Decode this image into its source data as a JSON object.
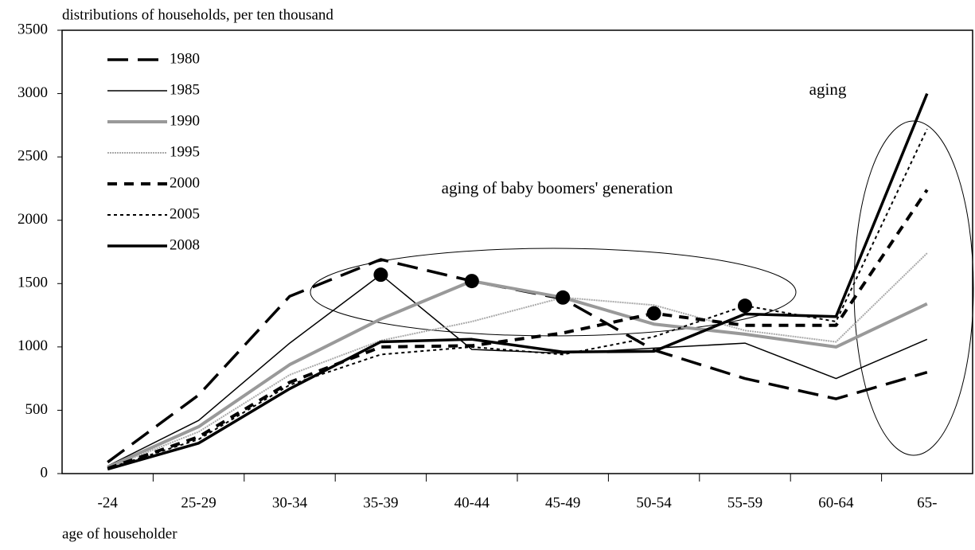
{
  "chart_data": {
    "type": "line",
    "y_label": "distributions of households, per ten thousand",
    "x_label": "age of householder",
    "categories": [
      "-24",
      "25-29",
      "30-34",
      "35-39",
      "40-44",
      "45-49",
      "50-54",
      "55-59",
      "60-64",
      "65-"
    ],
    "ylim": [
      0,
      3500
    ],
    "yticks": [
      0,
      500,
      1000,
      1500,
      2000,
      2500,
      3000,
      3500
    ],
    "annotations": [
      "aging of baby boomers' generation",
      "aging"
    ],
    "series": [
      {
        "name": "1980",
        "color": "#000000",
        "width": 3.5,
        "dash": "26 12",
        "values": [
          90,
          620,
          1400,
          1690,
          1520,
          1380,
          975,
          750,
          590,
          800
        ]
      },
      {
        "name": "1985",
        "color": "#000000",
        "width": 1.5,
        "dash": "none",
        "marked": 3,
        "values": [
          60,
          420,
          1030,
          1570,
          980,
          950,
          990,
          1030,
          750,
          1060
        ]
      },
      {
        "name": "1990",
        "color": "#999999",
        "width": 4,
        "dash": "none",
        "marked": 4,
        "values": [
          50,
          370,
          860,
          1220,
          1520,
          1390,
          1180,
          1100,
          1000,
          1340
        ]
      },
      {
        "name": "1995",
        "color": "#aaaaaa",
        "width": 2,
        "dash": "2 1",
        "marked": 5,
        "values": [
          45,
          330,
          780,
          1050,
          1200,
          1390,
          1330,
          1130,
          1040,
          1740
        ]
      },
      {
        "name": "2000",
        "color": "#000000",
        "width": 4,
        "dash": "12 9",
        "marked": 6,
        "values": [
          40,
          290,
          720,
          1000,
          1010,
          1110,
          1265,
          1170,
          1170,
          2240
        ]
      },
      {
        "name": "2005",
        "color": "#000000",
        "width": 2,
        "dash": "4 4",
        "marked": 7,
        "values": [
          40,
          270,
          700,
          940,
          1000,
          940,
          1080,
          1325,
          1200,
          2720
        ]
      },
      {
        "name": "2008",
        "color": "#000000",
        "width": 3.5,
        "dash": "none",
        "values": [
          35,
          240,
          670,
          1040,
          1060,
          960,
          965,
          1260,
          1240,
          3000
        ]
      }
    ]
  }
}
